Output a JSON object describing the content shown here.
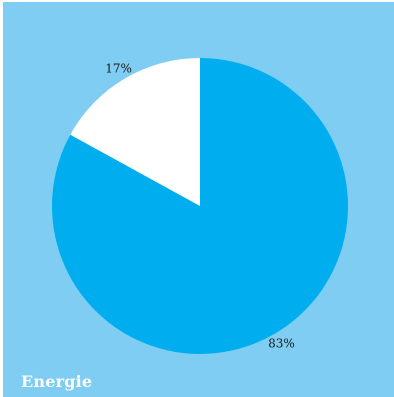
{
  "chart_data": {
    "type": "pie",
    "title": "",
    "slices": [
      {
        "label": "83%",
        "value": 83,
        "color": "#00aeef"
      },
      {
        "label": "17%",
        "value": 17,
        "color": "#ffffff"
      }
    ],
    "background_color": "#7fcdf2"
  },
  "footer": {
    "label": "Energie"
  }
}
